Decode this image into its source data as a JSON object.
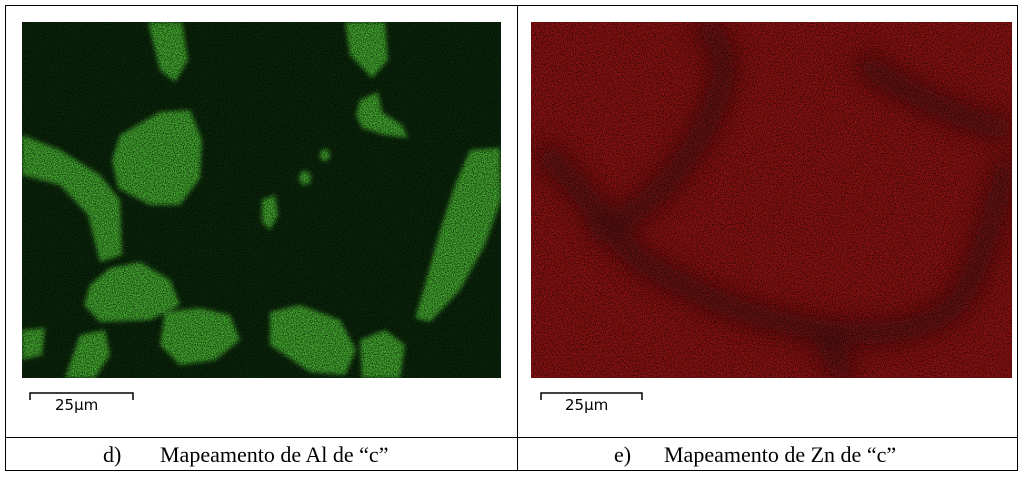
{
  "panels": [
    {
      "scale_bar": "25µm",
      "caption_label": "d)",
      "caption": "Mapeamento de Al de “c”"
    },
    {
      "scale_bar": "25µm",
      "caption_label": "e)",
      "caption": "Mapeamento de Zn de “c”"
    }
  ]
}
